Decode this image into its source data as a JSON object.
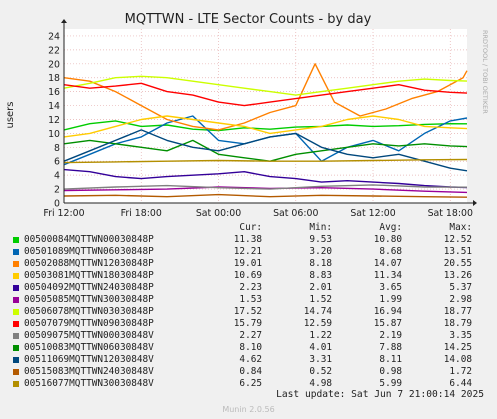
{
  "chart_data": {
    "type": "line",
    "title": "MQTTWN - LTE Sector Counts - by day",
    "ylabel": "users",
    "side_label": "RRDTOOL / TOBI OETIKER",
    "ylim": [
      0,
      25
    ],
    "yticks": [
      0,
      2,
      4,
      6,
      8,
      10,
      12,
      14,
      16,
      18,
      20,
      22,
      24
    ],
    "x_range_hours": [
      0,
      31.3
    ],
    "x_labels": [
      {
        "label": "Fri 12:00",
        "hour": 0
      },
      {
        "label": "Fri 18:00",
        "hour": 6
      },
      {
        "label": "Sat 00:00",
        "hour": 12
      },
      {
        "label": "Sat 06:00",
        "hour": 18
      },
      {
        "label": "Sat 12:00",
        "hour": 24
      },
      {
        "label": "Sat 18:00",
        "hour": 30
      }
    ],
    "grid": true,
    "legend_columns": [
      "Cur:",
      "Min:",
      "Avg:",
      "Max:"
    ],
    "series": [
      {
        "name": "00500084MQTTWN00030848P",
        "color": "#00cc00",
        "cur": "11.38",
        "min": "9.53",
        "avg": "10.80",
        "max": "12.52",
        "points": [
          [
            0,
            10.5
          ],
          [
            2,
            11.4
          ],
          [
            4,
            11.8
          ],
          [
            6,
            11.0
          ],
          [
            8,
            11.2
          ],
          [
            10,
            10.6
          ],
          [
            12,
            10.4
          ],
          [
            14,
            10.8
          ],
          [
            16,
            10.6
          ],
          [
            18,
            10.9
          ],
          [
            20,
            11.0
          ],
          [
            22,
            11.2
          ],
          [
            24,
            11.0
          ],
          [
            26,
            11.1
          ],
          [
            28,
            11.3
          ],
          [
            30,
            11.4
          ],
          [
            31.3,
            11.38
          ]
        ]
      },
      {
        "name": "00501089MQTTWN06030848P",
        "color": "#0066b3",
        "cur": "12.21",
        "min": "3.20",
        "avg": "8.68",
        "max": "13.51",
        "points": [
          [
            0,
            5.5
          ],
          [
            2,
            7.0
          ],
          [
            4,
            8.5
          ],
          [
            6,
            9.5
          ],
          [
            8,
            11.5
          ],
          [
            10,
            12.5
          ],
          [
            12,
            9.0
          ],
          [
            14,
            8.5
          ],
          [
            16,
            9.5
          ],
          [
            18,
            10.0
          ],
          [
            20,
            6.0
          ],
          [
            22,
            8.0
          ],
          [
            24,
            9.0
          ],
          [
            26,
            7.5
          ],
          [
            28,
            10.0
          ],
          [
            30,
            11.8
          ],
          [
            31.3,
            12.21
          ]
        ]
      },
      {
        "name": "00502088MQTTWN12030848P",
        "color": "#ff8000",
        "cur": "19.01",
        "min": "8.18",
        "avg": "14.07",
        "max": "20.55",
        "points": [
          [
            0,
            18.0
          ],
          [
            2,
            17.5
          ],
          [
            4,
            16.0
          ],
          [
            6,
            14.0
          ],
          [
            8,
            12.0
          ],
          [
            10,
            11.0
          ],
          [
            12,
            10.5
          ],
          [
            14,
            11.5
          ],
          [
            16,
            13.0
          ],
          [
            18,
            14.0
          ],
          [
            19.5,
            20.0
          ],
          [
            21,
            14.5
          ],
          [
            23,
            12.5
          ],
          [
            25,
            13.5
          ],
          [
            27,
            15.0
          ],
          [
            29,
            16.0
          ],
          [
            31,
            18.0
          ],
          [
            31.3,
            19.01
          ]
        ]
      },
      {
        "name": "00503081MQTTWN18030848P",
        "color": "#ffcc00",
        "cur": "10.69",
        "min": "8.83",
        "avg": "11.34",
        "max": "13.26",
        "points": [
          [
            0,
            9.5
          ],
          [
            2,
            10.0
          ],
          [
            4,
            11.0
          ],
          [
            6,
            12.0
          ],
          [
            8,
            12.5
          ],
          [
            10,
            12.0
          ],
          [
            12,
            11.5
          ],
          [
            14,
            11.0
          ],
          [
            16,
            10.0
          ],
          [
            18,
            10.5
          ],
          [
            20,
            11.0
          ],
          [
            22,
            12.0
          ],
          [
            24,
            12.5
          ],
          [
            26,
            12.0
          ],
          [
            28,
            11.0
          ],
          [
            30,
            10.8
          ],
          [
            31.3,
            10.69
          ]
        ]
      },
      {
        "name": "00504092MQTTWN24030848P",
        "color": "#330099",
        "cur": "2.23",
        "min": "2.01",
        "avg": "3.65",
        "max": "5.37",
        "points": [
          [
            0,
            4.8
          ],
          [
            2,
            4.5
          ],
          [
            4,
            3.8
          ],
          [
            6,
            3.5
          ],
          [
            8,
            3.8
          ],
          [
            10,
            4.0
          ],
          [
            12,
            4.2
          ],
          [
            14,
            4.5
          ],
          [
            16,
            3.8
          ],
          [
            18,
            3.5
          ],
          [
            20,
            3.0
          ],
          [
            22,
            3.2
          ],
          [
            24,
            3.0
          ],
          [
            26,
            2.8
          ],
          [
            28,
            2.5
          ],
          [
            30,
            2.3
          ],
          [
            31.3,
            2.23
          ]
        ]
      },
      {
        "name": "00505085MQTTWN30030848P",
        "color": "#990099",
        "cur": "1.53",
        "min": "1.52",
        "avg": "1.99",
        "max": "2.98",
        "points": [
          [
            0,
            1.8
          ],
          [
            4,
            1.9
          ],
          [
            8,
            2.0
          ],
          [
            12,
            2.3
          ],
          [
            16,
            2.1
          ],
          [
            20,
            2.2
          ],
          [
            24,
            2.0
          ],
          [
            28,
            1.7
          ],
          [
            31.3,
            1.53
          ]
        ]
      },
      {
        "name": "00506078MQTTWN03030848P",
        "color": "#ccff00",
        "cur": "17.52",
        "min": "14.74",
        "avg": "16.94",
        "max": "18.77",
        "points": [
          [
            0,
            16.5
          ],
          [
            2,
            17.2
          ],
          [
            4,
            18.0
          ],
          [
            6,
            18.2
          ],
          [
            8,
            18.0
          ],
          [
            10,
            17.5
          ],
          [
            12,
            17.0
          ],
          [
            14,
            16.5
          ],
          [
            16,
            16.0
          ],
          [
            18,
            15.5
          ],
          [
            20,
            16.0
          ],
          [
            22,
            16.5
          ],
          [
            24,
            17.0
          ],
          [
            26,
            17.5
          ],
          [
            28,
            17.8
          ],
          [
            30,
            17.6
          ],
          [
            31.3,
            17.52
          ]
        ]
      },
      {
        "name": "00507079MQTTWN09030848P",
        "color": "#ff0000",
        "cur": "15.79",
        "min": "12.59",
        "avg": "15.87",
        "max": "18.79",
        "points": [
          [
            0,
            17.0
          ],
          [
            2,
            16.5
          ],
          [
            4,
            16.8
          ],
          [
            6,
            17.2
          ],
          [
            8,
            16.0
          ],
          [
            10,
            15.5
          ],
          [
            12,
            14.5
          ],
          [
            14,
            14.0
          ],
          [
            16,
            14.5
          ],
          [
            18,
            15.0
          ],
          [
            20,
            15.5
          ],
          [
            22,
            16.0
          ],
          [
            24,
            16.5
          ],
          [
            26,
            17.0
          ],
          [
            28,
            16.2
          ],
          [
            30,
            15.9
          ],
          [
            31.3,
            15.79
          ]
        ]
      },
      {
        "name": "00509075MQTTWN00030848V",
        "color": "#808080",
        "cur": "2.27",
        "min": "1.22",
        "avg": "2.19",
        "max": "3.35",
        "points": [
          [
            0,
            2.0
          ],
          [
            4,
            2.3
          ],
          [
            8,
            2.5
          ],
          [
            12,
            2.2
          ],
          [
            16,
            2.0
          ],
          [
            20,
            2.4
          ],
          [
            24,
            2.6
          ],
          [
            28,
            2.3
          ],
          [
            31.3,
            2.27
          ]
        ]
      },
      {
        "name": "00510083MQTTWN06030848V",
        "color": "#008f00",
        "cur": "8.10",
        "min": "4.01",
        "avg": "7.88",
        "max": "14.25",
        "points": [
          [
            0,
            8.5
          ],
          [
            2,
            9.0
          ],
          [
            4,
            8.5
          ],
          [
            6,
            8.0
          ],
          [
            8,
            7.5
          ],
          [
            10,
            9.0
          ],
          [
            12,
            7.0
          ],
          [
            14,
            6.5
          ],
          [
            16,
            6.0
          ],
          [
            18,
            7.0
          ],
          [
            20,
            7.5
          ],
          [
            22,
            8.0
          ],
          [
            24,
            8.5
          ],
          [
            26,
            8.2
          ],
          [
            28,
            8.5
          ],
          [
            30,
            8.2
          ],
          [
            31.3,
            8.1
          ]
        ]
      },
      {
        "name": "00511069MQTTWN12030848V",
        "color": "#00487d",
        "cur": "4.62",
        "min": "3.31",
        "avg": "8.11",
        "max": "14.08",
        "points": [
          [
            0,
            6.0
          ],
          [
            2,
            7.5
          ],
          [
            4,
            9.0
          ],
          [
            6,
            10.5
          ],
          [
            8,
            9.0
          ],
          [
            10,
            8.0
          ],
          [
            12,
            7.5
          ],
          [
            14,
            8.5
          ],
          [
            16,
            9.5
          ],
          [
            18,
            10.0
          ],
          [
            20,
            8.0
          ],
          [
            22,
            7.0
          ],
          [
            24,
            6.5
          ],
          [
            26,
            7.0
          ],
          [
            28,
            6.0
          ],
          [
            30,
            5.0
          ],
          [
            31.3,
            4.62
          ]
        ]
      },
      {
        "name": "00515083MQTTWN24030848V",
        "color": "#b35a00",
        "cur": "0.84",
        "min": "0.52",
        "avg": "0.98",
        "max": "1.72",
        "points": [
          [
            0,
            1.0
          ],
          [
            4,
            1.1
          ],
          [
            8,
            0.9
          ],
          [
            12,
            1.2
          ],
          [
            16,
            0.9
          ],
          [
            20,
            1.1
          ],
          [
            24,
            1.0
          ],
          [
            28,
            0.9
          ],
          [
            31.3,
            0.84
          ]
        ]
      },
      {
        "name": "00516077MQTTWN30030848V",
        "color": "#b38f00",
        "cur": "6.25",
        "min": "4.98",
        "avg": "5.99",
        "max": "6.44",
        "points": [
          [
            0,
            5.8
          ],
          [
            4,
            5.9
          ],
          [
            8,
            6.0
          ],
          [
            12,
            6.1
          ],
          [
            16,
            6.0
          ],
          [
            20,
            6.0
          ],
          [
            24,
            6.1
          ],
          [
            28,
            6.2
          ],
          [
            31.3,
            6.25
          ]
        ]
      }
    ],
    "last_update": "Last update: Sat Jun  7 21:00:14 2025",
    "version": "Munin 2.0.56"
  }
}
